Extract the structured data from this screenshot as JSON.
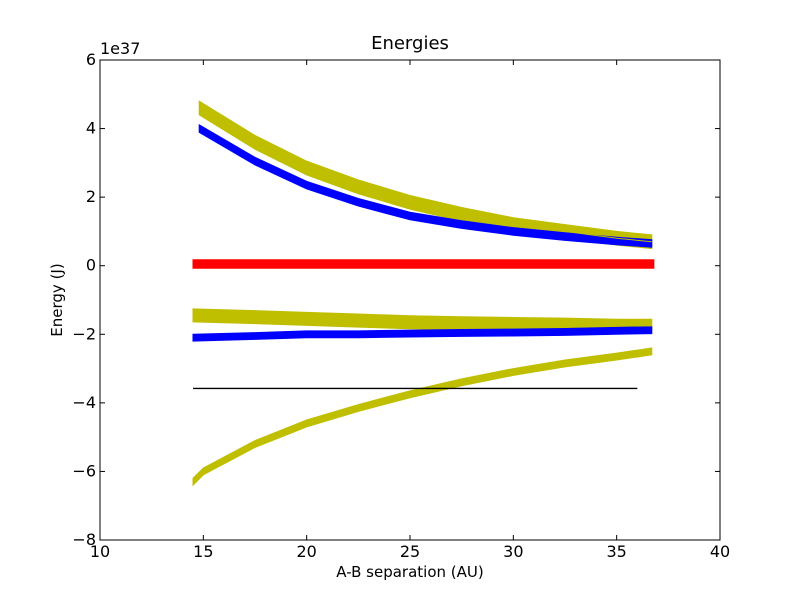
{
  "chart_data": {
    "type": "line",
    "title": "Energies",
    "xlabel": "A-B separation (AU)",
    "ylabel": "Energy (J)",
    "y_scale_label": "1e37",
    "xlim": [
      10,
      40
    ],
    "ylim": [
      -8,
      6
    ],
    "x_ticks": [
      10,
      15,
      20,
      25,
      30,
      35,
      40
    ],
    "y_ticks": [
      -8,
      -6,
      -4,
      -2,
      0,
      2,
      4,
      6
    ],
    "x_tick_labels": [
      "10",
      "15",
      "20",
      "25",
      "30",
      "35",
      "40"
    ],
    "y_tick_labels": [
      "−8",
      "−6",
      "−4",
      "−2",
      "0",
      "2",
      "4",
      "6"
    ],
    "grid": false,
    "series": [
      {
        "color": "#bfbf00",
        "x": [
          14.8,
          17.5,
          20,
          22.5,
          25,
          27.5,
          30,
          32.5,
          35,
          36.7
        ],
        "y": [
          4.6,
          3.6,
          2.85,
          2.3,
          1.85,
          1.5,
          1.2,
          1.0,
          0.8,
          0.7
        ],
        "band": 0.4
      },
      {
        "color": "#0000ff",
        "x": [
          14.8,
          17.5,
          20,
          22.5,
          25,
          27.5,
          30,
          32.5,
          35,
          36.7
        ],
        "y": [
          4.0,
          3.05,
          2.35,
          1.85,
          1.45,
          1.2,
          1.0,
          0.85,
          0.72,
          0.65
        ],
        "band": 0.22
      },
      {
        "color": "#ff0000",
        "x": [
          14.5,
          17.5,
          20,
          22.5,
          25,
          27.5,
          30,
          32.5,
          35,
          36.8
        ],
        "y": [
          0.05,
          0.05,
          0.05,
          0.05,
          0.05,
          0.05,
          0.05,
          0.05,
          0.05,
          0.05
        ],
        "band": 0.25
      },
      {
        "color": "#bfbf00",
        "x": [
          14.5,
          17.5,
          20,
          22.5,
          25,
          27.5,
          30,
          32.5,
          35,
          36.7
        ],
        "y": [
          -1.45,
          -1.5,
          -1.55,
          -1.6,
          -1.65,
          -1.68,
          -1.7,
          -1.72,
          -1.75,
          -1.75
        ],
        "band": 0.38
      },
      {
        "color": "#0000ff",
        "x": [
          14.5,
          17.5,
          20,
          22.5,
          25,
          27.5,
          30,
          32.5,
          35,
          36.7
        ],
        "y": [
          -2.1,
          -2.05,
          -2.0,
          -2.0,
          -1.98,
          -1.96,
          -1.95,
          -1.93,
          -1.9,
          -1.88
        ],
        "band": 0.2
      },
      {
        "color": "#bfbf00",
        "x": [
          14.5,
          15,
          17.5,
          20,
          22.5,
          25,
          27.5,
          30,
          32.5,
          35,
          36.7
        ],
        "y": [
          -6.3,
          -6.0,
          -5.2,
          -4.6,
          -4.15,
          -3.75,
          -3.4,
          -3.1,
          -2.85,
          -2.65,
          -2.5
        ],
        "band": 0.2
      },
      {
        "color": "#000000",
        "x": [
          14.5,
          36.0
        ],
        "y": [
          -3.58,
          -3.58
        ],
        "band": 0
      }
    ]
  }
}
